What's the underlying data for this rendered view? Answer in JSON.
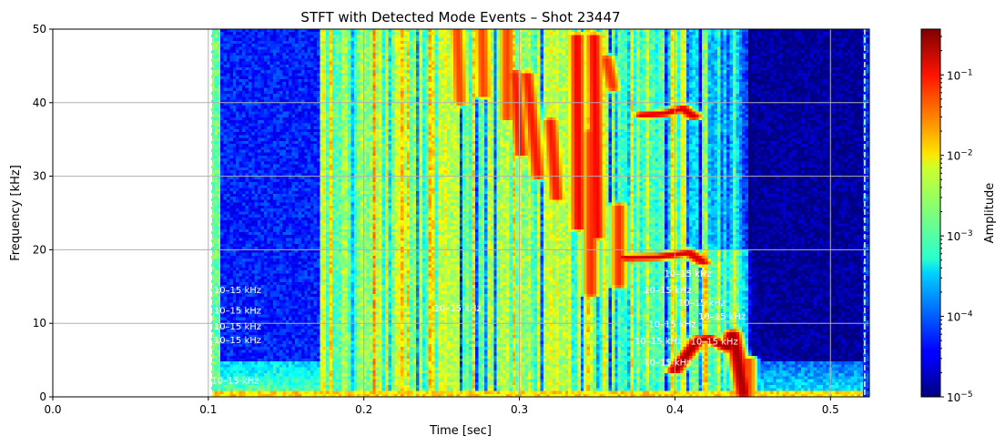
{
  "chart_data": {
    "type": "heatmap",
    "title": "STFT with Detected Mode Events – Shot 23447",
    "xlabel": "Time [sec]",
    "ylabel": "Frequency [kHz]",
    "xlim": [
      0.0,
      0.525
    ],
    "ylim": [
      0,
      50
    ],
    "xticks": [
      0.0,
      0.1,
      0.2,
      0.3,
      0.4,
      0.5
    ],
    "xtick_labels": [
      "0.0",
      "0.1",
      "0.2",
      "0.3",
      "0.4",
      "0.5"
    ],
    "yticks": [
      0,
      10,
      20,
      30,
      40,
      50
    ],
    "ytick_labels": [
      "0",
      "10",
      "20",
      "30",
      "40",
      "50"
    ],
    "grid": true,
    "colormap": "jet",
    "color_scale": "log",
    "colorbar": {
      "label": "Amplitude",
      "range": [
        1e-05,
        0.37
      ],
      "ticks": [
        1e-05,
        0.0001,
        0.001,
        0.01,
        0.1
      ],
      "tick_labels": [
        {
          "base": "10",
          "exp": "−5"
        },
        {
          "base": "10",
          "exp": "−4"
        },
        {
          "base": "10",
          "exp": "−3"
        },
        {
          "base": "10",
          "exp": "−2"
        },
        {
          "base": "10",
          "exp": "−1"
        }
      ]
    },
    "data_time_range": [
      0.102,
      0.525
    ],
    "vertical_markers": [
      0.102,
      0.522
    ],
    "marker_color": "#ffffff",
    "background_segments": [
      {
        "t": [
          0.102,
          0.108
        ],
        "log_amp": -2.8
      },
      {
        "t": [
          0.108,
          0.172
        ],
        "log_amp": -4.3,
        "low_band_log_amp": -3.5
      },
      {
        "t": [
          0.172,
          0.45
        ],
        "log_amp": -2.7,
        "striped": true
      },
      {
        "t": [
          0.45,
          0.522
        ],
        "log_amp": -4.9,
        "low_band_log_amp": -4.0
      },
      {
        "t": [
          0.522,
          0.525
        ],
        "log_amp": -4.2
      }
    ],
    "mode_traces": [
      {
        "points": [
          [
            0.379,
            38.3
          ],
          [
            0.393,
            38.5
          ],
          [
            0.405,
            39.2
          ],
          [
            0.412,
            38.1
          ]
        ],
        "log_amp": -0.8
      },
      {
        "points": [
          [
            0.368,
            18.9
          ],
          [
            0.389,
            19.0
          ],
          [
            0.409,
            19.6
          ],
          [
            0.418,
            18.3
          ]
        ],
        "log_amp": -0.8
      },
      {
        "points": [
          [
            0.4,
            3.6
          ],
          [
            0.415,
            7.8
          ],
          [
            0.422,
            7.9
          ],
          [
            0.434,
            6.6
          ],
          [
            0.437,
            8.6
          ],
          [
            0.44,
            5.7
          ],
          [
            0.444,
            0.4
          ]
        ],
        "log_amp": -0.6
      },
      {
        "points": [
          [
            0.26,
            50
          ],
          [
            0.262,
            40
          ]
        ],
        "log_amp": -1.3
      },
      {
        "points": [
          [
            0.276,
            50
          ],
          [
            0.277,
            41
          ]
        ],
        "log_amp": -1.3
      },
      {
        "points": [
          [
            0.292,
            50
          ],
          [
            0.292,
            37.9
          ]
        ],
        "log_amp": -1.3
      },
      {
        "points": [
          [
            0.297,
            44
          ],
          [
            0.301,
            33
          ]
        ],
        "log_amp": -1.1
      },
      {
        "points": [
          [
            0.305,
            43.8
          ],
          [
            0.312,
            30
          ]
        ],
        "log_amp": -1.1
      },
      {
        "points": [
          [
            0.32,
            37.5
          ],
          [
            0.324,
            27
          ]
        ],
        "log_amp": -1.1
      },
      {
        "points": [
          [
            0.337,
            49
          ],
          [
            0.338,
            23
          ]
        ],
        "log_amp": -1.0
      },
      {
        "points": [
          [
            0.348,
            49
          ],
          [
            0.35,
            21.8
          ]
        ],
        "log_amp": -1.0
      },
      {
        "points": [
          [
            0.346,
            36
          ],
          [
            0.346,
            14
          ]
        ],
        "log_amp": -1.2
      },
      {
        "points": [
          [
            0.356,
            46
          ],
          [
            0.36,
            42
          ]
        ],
        "log_amp": -1.2
      },
      {
        "points": [
          [
            0.364,
            25.9
          ],
          [
            0.364,
            15.2
          ]
        ],
        "log_amp": -1.2
      },
      {
        "points": [
          [
            0.447,
            0
          ],
          [
            0.447,
            5
          ]
        ],
        "log_amp": -1.3
      }
    ],
    "annotations": [
      {
        "t": 0.1035,
        "f": 14.6,
        "text": "10–15 kHz"
      },
      {
        "t": 0.1035,
        "f": 13.4,
        "text": "10–15 kHz"
      },
      {
        "t": 0.1035,
        "f": 12.9,
        "text": "10–15 kHz"
      },
      {
        "t": 0.1035,
        "f": 11.0,
        "text": "10–15 kHz"
      },
      {
        "t": 0.102,
        "f": 0.7,
        "text": "10–15 kHz"
      },
      {
        "t": 0.245,
        "f": 12.1,
        "text": "10–15 kHz"
      },
      {
        "t": 0.38,
        "f": 14.6,
        "text": "10–15 kHz"
      },
      {
        "t": 0.393,
        "f": 15.2,
        "text": "10–15 kHz"
      },
      {
        "t": 0.402,
        "f": 14.5,
        "text": "10–15 kHz"
      },
      {
        "t": 0.383,
        "f": 13.2,
        "text": "10–15 kHz"
      },
      {
        "t": 0.374,
        "f": 12.5,
        "text": "10–15 kHz"
      },
      {
        "t": 0.38,
        "f": 11.2,
        "text": "10–15 kHz"
      },
      {
        "t": 0.415,
        "f": 12.6,
        "text": "10–15 kHz"
      },
      {
        "t": 0.41,
        "f": 10.8,
        "text": "10–15 kHz"
      }
    ]
  }
}
